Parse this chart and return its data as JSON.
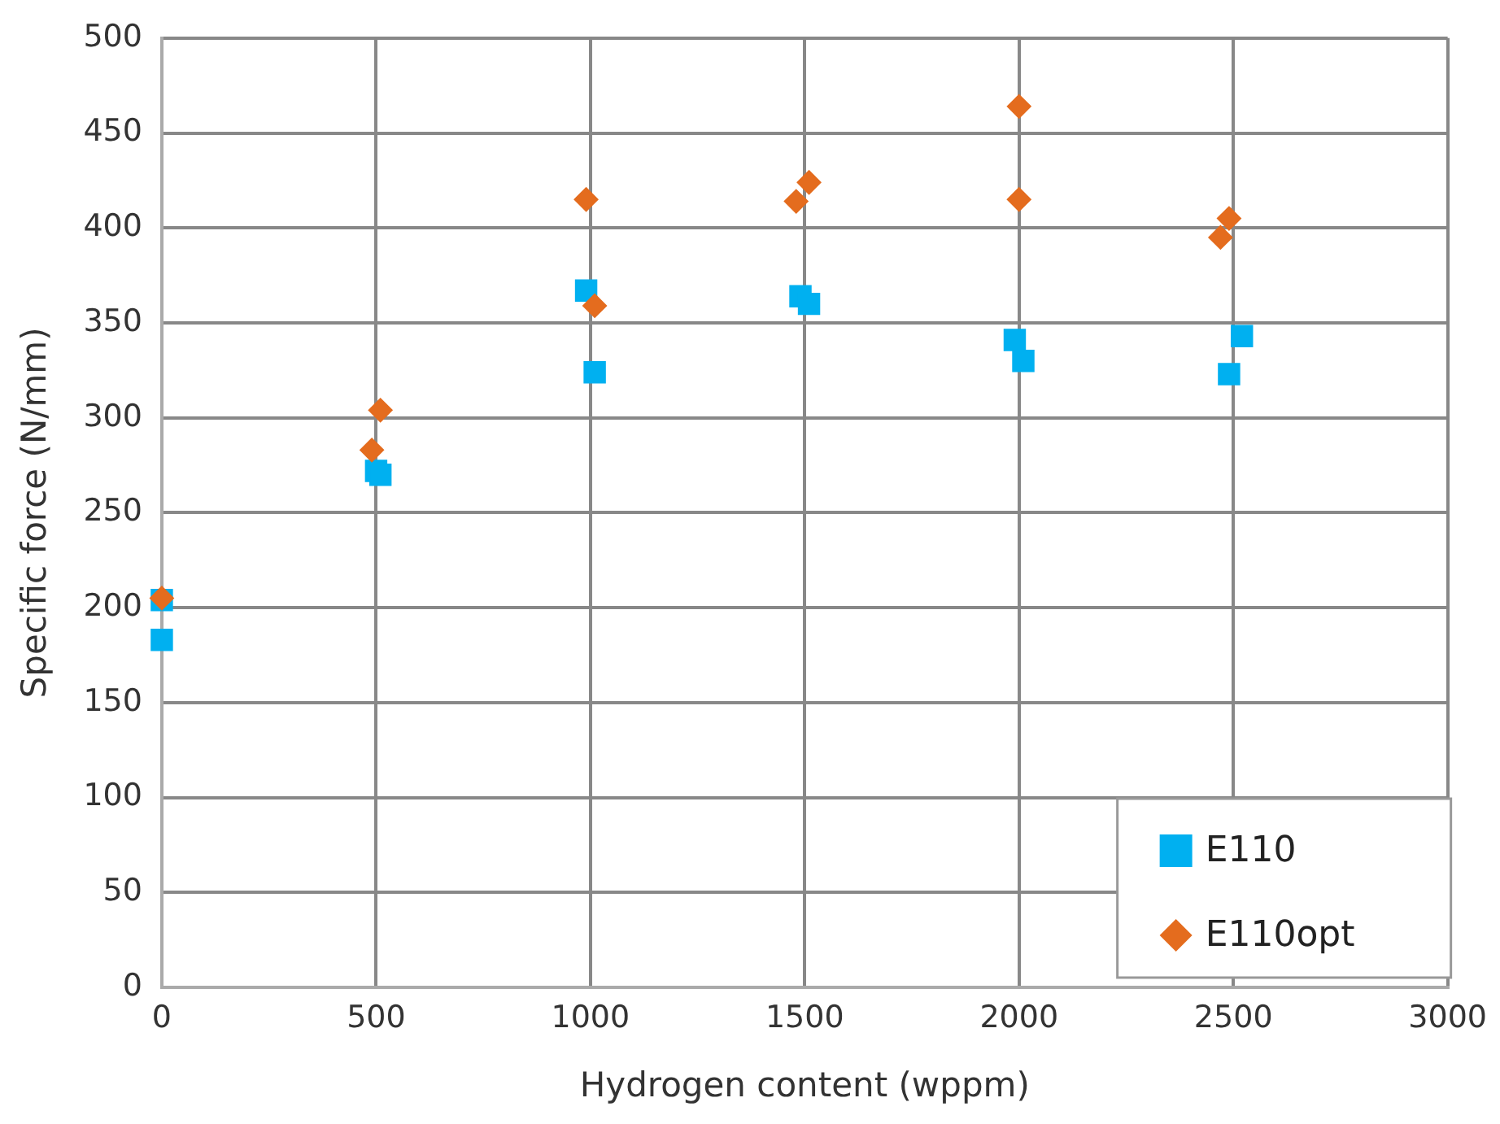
{
  "chart_data": {
    "type": "scatter",
    "xlabel": "Hydrogen content (wppm)",
    "ylabel": "Specific force (N/mm)",
    "xlim": [
      0,
      3000
    ],
    "xticks": [
      0,
      500,
      1000,
      1500,
      2000,
      2500,
      3000
    ],
    "ylim": [
      0,
      500
    ],
    "yticks": [
      0,
      50,
      100,
      150,
      200,
      250,
      300,
      350,
      400,
      450,
      500
    ],
    "grid": true,
    "legend": "bottom right",
    "series": [
      {
        "name": "E110",
        "color": "#00b0f0",
        "marker": "square",
        "x": [
          0,
          0,
          500,
          510,
          990,
          1010,
          1490,
          1510,
          1990,
          2010,
          2490,
          2520
        ],
        "values": [
          204,
          183,
          272,
          270,
          367,
          324,
          364,
          360,
          341,
          330,
          323,
          343
        ]
      },
      {
        "name": "E110opt",
        "color": "#e46c1e",
        "marker": "diamond",
        "x": [
          0,
          490,
          510,
          990,
          1010,
          1480,
          1510,
          2000,
          2000,
          2470,
          2490
        ],
        "values": [
          205,
          283,
          304,
          415,
          359,
          414,
          424,
          464,
          415,
          395,
          405
        ]
      }
    ]
  }
}
